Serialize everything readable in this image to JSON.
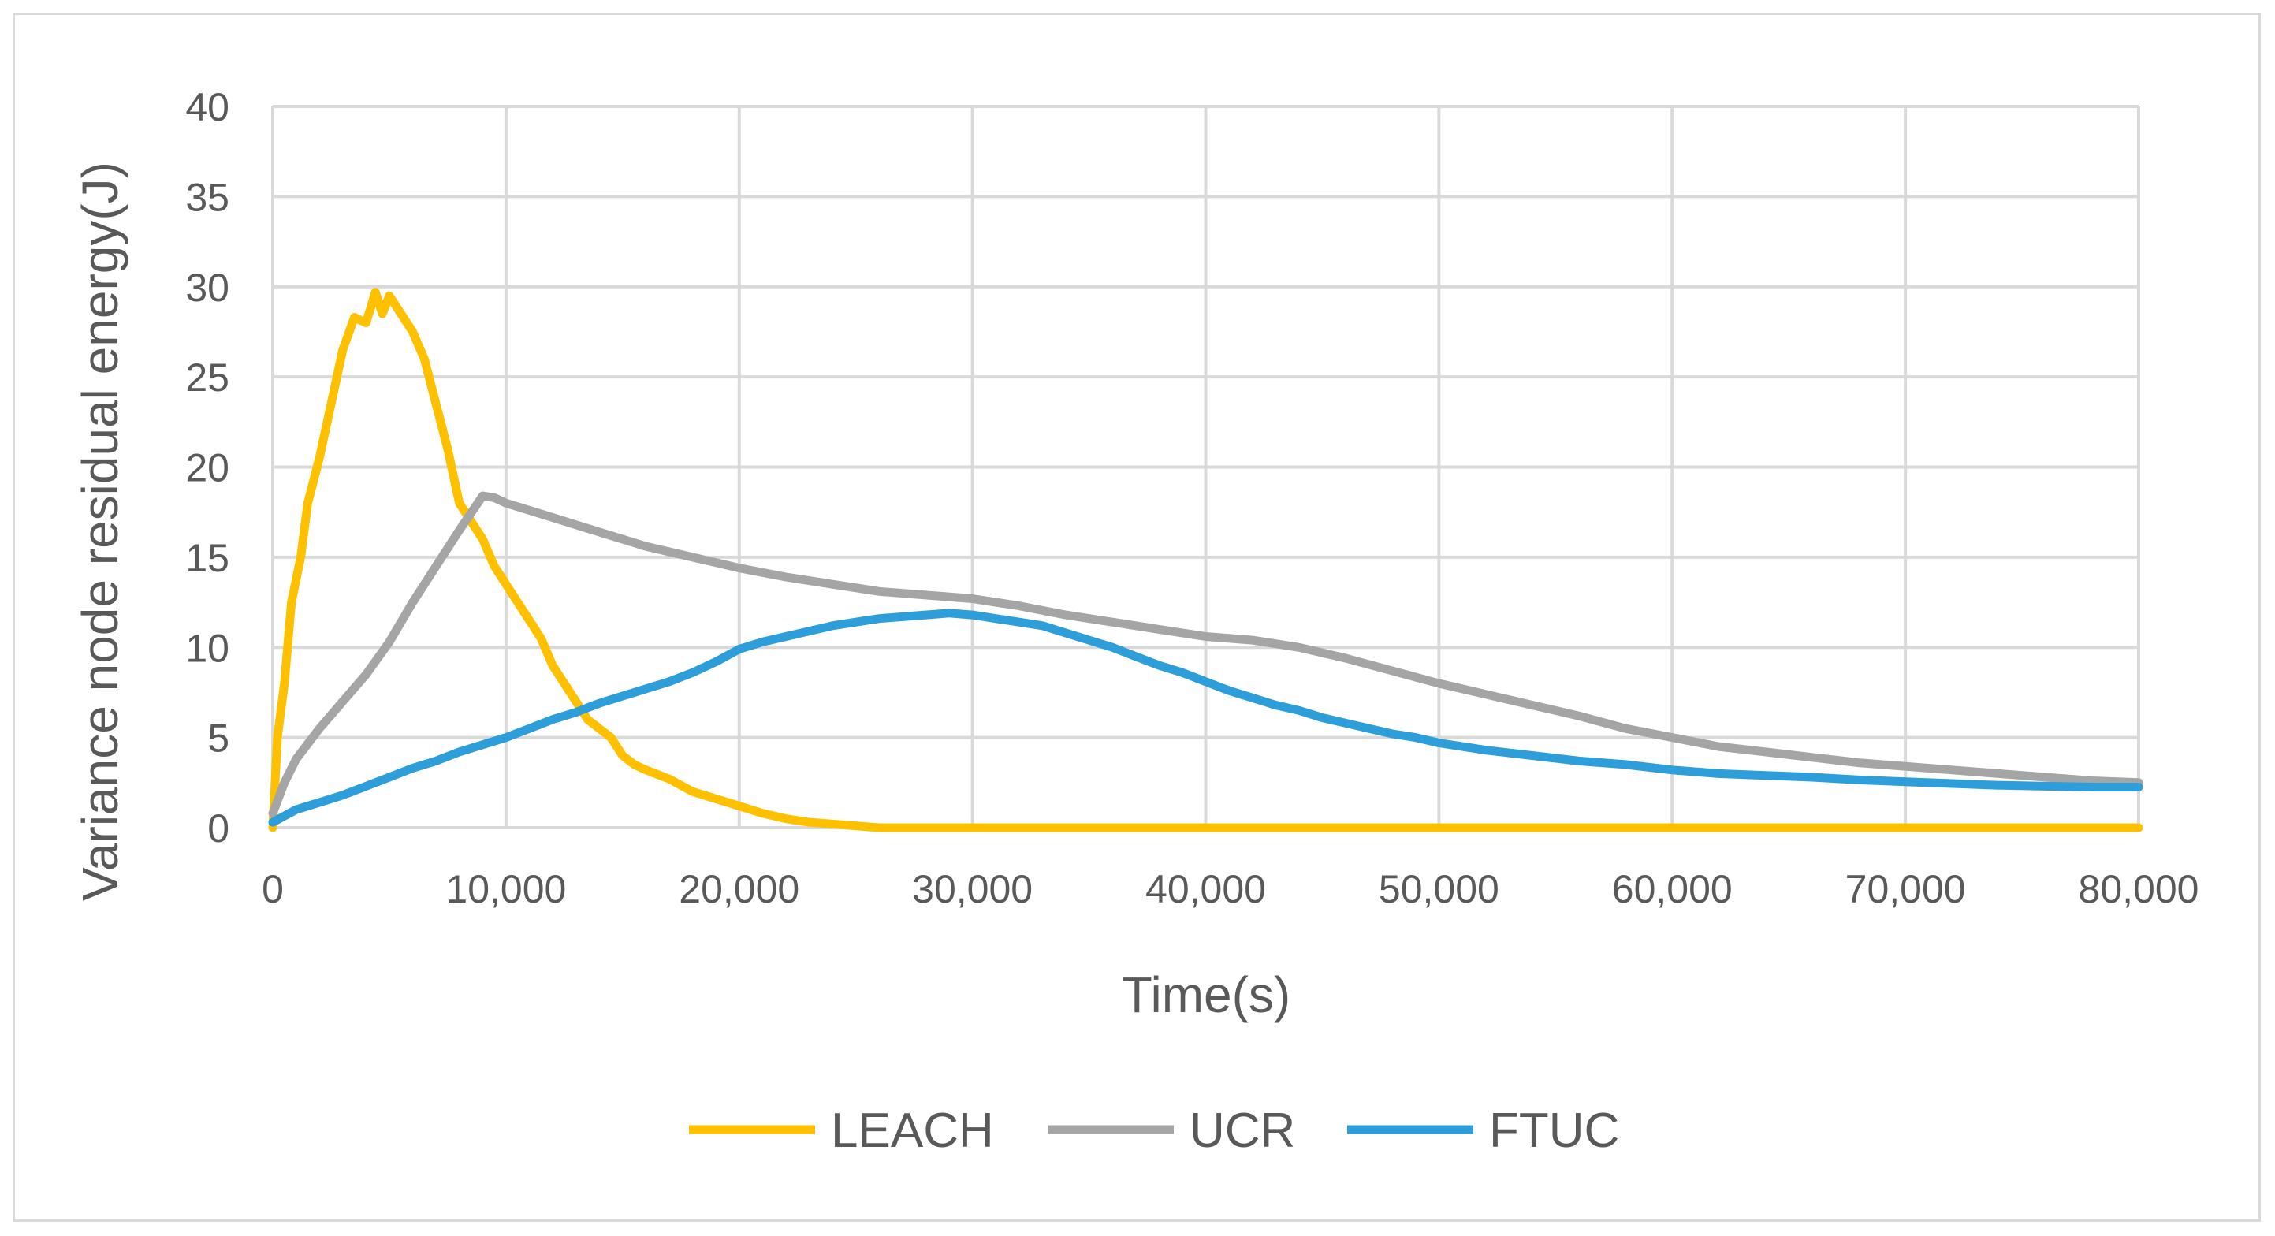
{
  "chart_data": {
    "type": "line",
    "title": "",
    "xlabel": "Time(s)",
    "ylabel": "Variance node residual energy(J)",
    "xlim": [
      0,
      80000
    ],
    "ylim": [
      0,
      40
    ],
    "x_ticks": [
      0,
      10000,
      20000,
      30000,
      40000,
      50000,
      60000,
      70000,
      80000
    ],
    "x_tick_labels": [
      "0",
      "10,000",
      "20,000",
      "30,000",
      "40,000",
      "50,000",
      "60,000",
      "70,000",
      "80,000"
    ],
    "y_ticks": [
      0,
      5,
      10,
      15,
      20,
      25,
      30,
      35,
      40
    ],
    "y_tick_labels": [
      "0",
      "5",
      "10",
      "15",
      "20",
      "25",
      "30",
      "35",
      "40"
    ],
    "grid": true,
    "legend_position": "bottom",
    "series": [
      {
        "name": "LEACH",
        "color": "#ffc000",
        "points": [
          [
            0,
            0
          ],
          [
            200,
            5
          ],
          [
            500,
            8
          ],
          [
            800,
            12.5
          ],
          [
            1200,
            15
          ],
          [
            1500,
            18
          ],
          [
            2000,
            20.5
          ],
          [
            2500,
            23.5
          ],
          [
            3000,
            26.5
          ],
          [
            3500,
            28.3
          ],
          [
            4000,
            28
          ],
          [
            4400,
            29.7
          ],
          [
            4700,
            28.5
          ],
          [
            5000,
            29.5
          ],
          [
            5500,
            28.5
          ],
          [
            6000,
            27.5
          ],
          [
            6500,
            26
          ],
          [
            7000,
            23.5
          ],
          [
            7500,
            21
          ],
          [
            8000,
            18
          ],
          [
            8500,
            17
          ],
          [
            9000,
            16
          ],
          [
            9500,
            14.5
          ],
          [
            10000,
            13.5
          ],
          [
            10500,
            12.5
          ],
          [
            11000,
            11.5
          ],
          [
            11500,
            10.5
          ],
          [
            12000,
            9
          ],
          [
            12500,
            8
          ],
          [
            13000,
            7
          ],
          [
            13500,
            6
          ],
          [
            14000,
            5.5
          ],
          [
            14500,
            5
          ],
          [
            15000,
            4
          ],
          [
            15500,
            3.5
          ],
          [
            16000,
            3.2
          ],
          [
            17000,
            2.7
          ],
          [
            18000,
            2
          ],
          [
            19000,
            1.6
          ],
          [
            20000,
            1.2
          ],
          [
            21000,
            0.8
          ],
          [
            22000,
            0.5
          ],
          [
            23000,
            0.3
          ],
          [
            24000,
            0.2
          ],
          [
            25000,
            0.1
          ],
          [
            26000,
            0
          ],
          [
            80000,
            0
          ]
        ]
      },
      {
        "name": "UCR",
        "color": "#a5a5a5",
        "points": [
          [
            0,
            0.8
          ],
          [
            500,
            2.5
          ],
          [
            1000,
            3.8
          ],
          [
            2000,
            5.5
          ],
          [
            3000,
            7
          ],
          [
            4000,
            8.5
          ],
          [
            5000,
            10.3
          ],
          [
            6000,
            12.5
          ],
          [
            7000,
            14.5
          ],
          [
            8000,
            16.5
          ],
          [
            9000,
            18.4
          ],
          [
            9500,
            18.3
          ],
          [
            10000,
            18
          ],
          [
            11000,
            17.6
          ],
          [
            12000,
            17.2
          ],
          [
            13000,
            16.8
          ],
          [
            14000,
            16.4
          ],
          [
            15000,
            16
          ],
          [
            16000,
            15.6
          ],
          [
            17000,
            15.3
          ],
          [
            18000,
            15
          ],
          [
            19000,
            14.7
          ],
          [
            20000,
            14.4
          ],
          [
            22000,
            13.9
          ],
          [
            24000,
            13.5
          ],
          [
            26000,
            13.1
          ],
          [
            28000,
            12.9
          ],
          [
            30000,
            12.7
          ],
          [
            32000,
            12.3
          ],
          [
            34000,
            11.8
          ],
          [
            36000,
            11.4
          ],
          [
            38000,
            11
          ],
          [
            40000,
            10.6
          ],
          [
            42000,
            10.4
          ],
          [
            44000,
            10
          ],
          [
            46000,
            9.4
          ],
          [
            48000,
            8.7
          ],
          [
            50000,
            8
          ],
          [
            52000,
            7.4
          ],
          [
            54000,
            6.8
          ],
          [
            56000,
            6.2
          ],
          [
            58000,
            5.5
          ],
          [
            60000,
            5
          ],
          [
            62000,
            4.5
          ],
          [
            64000,
            4.2
          ],
          [
            66000,
            3.9
          ],
          [
            68000,
            3.6
          ],
          [
            70000,
            3.4
          ],
          [
            72000,
            3.2
          ],
          [
            74000,
            3
          ],
          [
            76000,
            2.8
          ],
          [
            78000,
            2.6
          ],
          [
            80000,
            2.5
          ]
        ]
      },
      {
        "name": "FTUC",
        "color": "#2d9ed9",
        "points": [
          [
            0,
            0.3
          ],
          [
            1000,
            1
          ],
          [
            2000,
            1.4
          ],
          [
            3000,
            1.8
          ],
          [
            4000,
            2.3
          ],
          [
            5000,
            2.8
          ],
          [
            6000,
            3.3
          ],
          [
            7000,
            3.7
          ],
          [
            8000,
            4.2
          ],
          [
            9000,
            4.6
          ],
          [
            10000,
            5
          ],
          [
            11000,
            5.5
          ],
          [
            12000,
            6
          ],
          [
            13000,
            6.4
          ],
          [
            14000,
            6.9
          ],
          [
            15000,
            7.3
          ],
          [
            16000,
            7.7
          ],
          [
            17000,
            8.1
          ],
          [
            18000,
            8.6
          ],
          [
            19000,
            9.2
          ],
          [
            20000,
            9.9
          ],
          [
            21000,
            10.3
          ],
          [
            22000,
            10.6
          ],
          [
            23000,
            10.9
          ],
          [
            24000,
            11.2
          ],
          [
            25000,
            11.4
          ],
          [
            26000,
            11.6
          ],
          [
            27000,
            11.7
          ],
          [
            28000,
            11.8
          ],
          [
            29000,
            11.9
          ],
          [
            30000,
            11.8
          ],
          [
            31000,
            11.6
          ],
          [
            32000,
            11.4
          ],
          [
            33000,
            11.2
          ],
          [
            34000,
            10.8
          ],
          [
            35000,
            10.4
          ],
          [
            36000,
            10
          ],
          [
            37000,
            9.5
          ],
          [
            38000,
            9
          ],
          [
            39000,
            8.6
          ],
          [
            40000,
            8.1
          ],
          [
            41000,
            7.6
          ],
          [
            42000,
            7.2
          ],
          [
            43000,
            6.8
          ],
          [
            44000,
            6.5
          ],
          [
            45000,
            6.1
          ],
          [
            46000,
            5.8
          ],
          [
            47000,
            5.5
          ],
          [
            48000,
            5.2
          ],
          [
            49000,
            5
          ],
          [
            50000,
            4.7
          ],
          [
            52000,
            4.3
          ],
          [
            54000,
            4
          ],
          [
            56000,
            3.7
          ],
          [
            58000,
            3.5
          ],
          [
            60000,
            3.2
          ],
          [
            62000,
            3
          ],
          [
            64000,
            2.9
          ],
          [
            66000,
            2.8
          ],
          [
            68000,
            2.65
          ],
          [
            70000,
            2.55
          ],
          [
            72000,
            2.45
          ],
          [
            74000,
            2.35
          ],
          [
            76000,
            2.3
          ],
          [
            78000,
            2.25
          ],
          [
            80000,
            2.25
          ]
        ]
      }
    ]
  }
}
